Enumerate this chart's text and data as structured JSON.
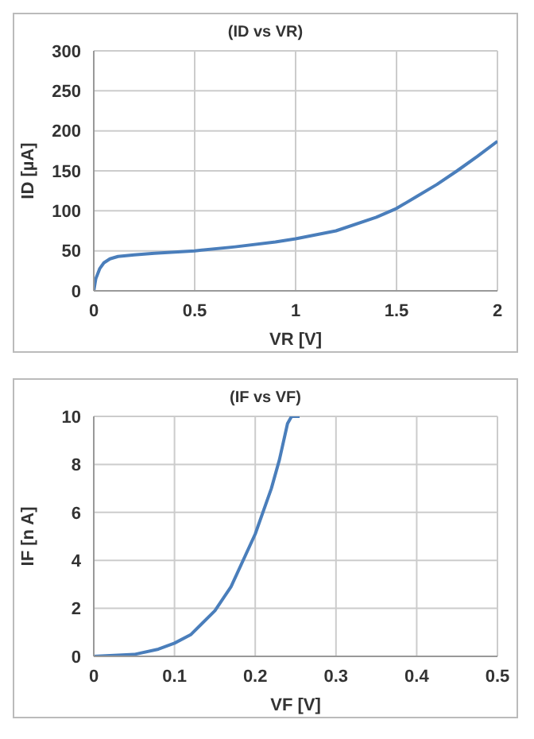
{
  "chart_data": [
    {
      "type": "line",
      "title": "(ID vs VR)",
      "xlabel": "VR [V]",
      "ylabel": "ID [µA]",
      "xlim": [
        0,
        2
      ],
      "xticks": [
        0,
        0.5,
        1,
        1.5,
        2
      ],
      "ylim": [
        0,
        300
      ],
      "yticks": [
        0,
        50,
        100,
        150,
        200,
        250,
        300
      ],
      "grid": true,
      "legend": false,
      "marker": "none",
      "line_style": "solid",
      "series": [
        {
          "color": "#4a7ebb",
          "x": [
            0,
            0.01,
            0.03,
            0.05,
            0.08,
            0.12,
            0.2,
            0.3,
            0.5,
            0.7,
            0.9,
            1.0,
            1.2,
            1.4,
            1.5,
            1.6,
            1.7,
            1.8,
            1.9,
            2.0
          ],
          "values": [
            0,
            15,
            28,
            35,
            40,
            43,
            45,
            47,
            50,
            55,
            61,
            65,
            75,
            92,
            103,
            118,
            133,
            150,
            168,
            187
          ]
        }
      ]
    },
    {
      "type": "line",
      "title": "(IF vs VF)",
      "xlabel": "VF [V]",
      "ylabel": "IF [n A]",
      "xlim": [
        0,
        0.5
      ],
      "xticks": [
        0,
        0.1,
        0.2,
        0.3,
        0.4,
        0.5
      ],
      "ylim": [
        0,
        10
      ],
      "yticks": [
        0,
        2,
        4,
        6,
        8,
        10
      ],
      "grid": true,
      "legend": false,
      "marker": "none",
      "line_style": "solid",
      "series": [
        {
          "color": "#4a7ebb",
          "x": [
            0,
            0.05,
            0.08,
            0.1,
            0.12,
            0.15,
            0.17,
            0.2,
            0.22,
            0.23,
            0.24,
            0.245,
            0.255
          ],
          "values": [
            0,
            0.08,
            0.3,
            0.55,
            0.9,
            1.9,
            2.9,
            5.1,
            7.0,
            8.2,
            9.7,
            10,
            10
          ]
        }
      ]
    }
  ]
}
